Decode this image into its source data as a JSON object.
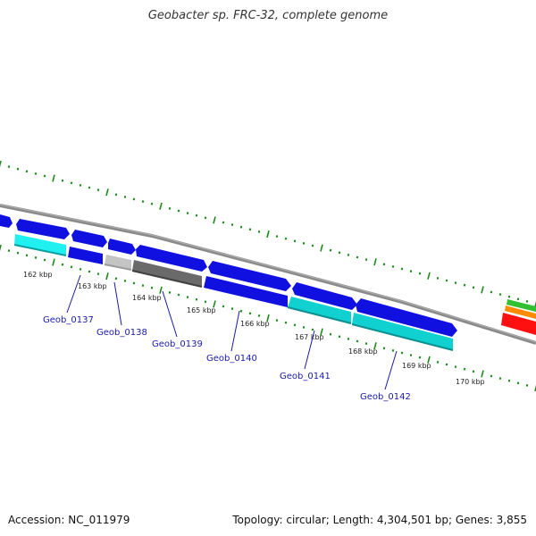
{
  "title": "Geobacter sp. FRC-32, complete genome",
  "footer": {
    "accession": "Accession: NC_011979",
    "summary": "Topology: circular; Length: 4,304,501 bp; Genes: 3,855"
  },
  "colors": {
    "blue": "#1010e0",
    "cyan": "#10d0d0",
    "light_cyan": "#20f0f0",
    "gray": "#6a6a6a",
    "light_gray": "#c0c0c0",
    "tick_green": "#1a8a1a",
    "backbone": "#888888",
    "label_blue": "#1a1aa6"
  },
  "tick_labels": [
    {
      "kbp": 162,
      "label": "162 kbp"
    },
    {
      "kbp": 163,
      "label": "163 kbp"
    },
    {
      "kbp": 164,
      "label": "164 kbp"
    },
    {
      "kbp": 165,
      "label": "165 kbp"
    },
    {
      "kbp": 166,
      "label": "166 kbp"
    },
    {
      "kbp": 167,
      "label": "167 kbp"
    },
    {
      "kbp": 168,
      "label": "168 kbp"
    },
    {
      "kbp": 169,
      "label": "169 kbp"
    },
    {
      "kbp": 170,
      "label": "170 kbp"
    }
  ],
  "gene_labels": [
    {
      "name": "Geob_0137"
    },
    {
      "name": "Geob_0138"
    },
    {
      "name": "Geob_0139"
    },
    {
      "name": "Geob_0140"
    },
    {
      "name": "Geob_0141"
    },
    {
      "name": "Geob_0142"
    }
  ]
}
